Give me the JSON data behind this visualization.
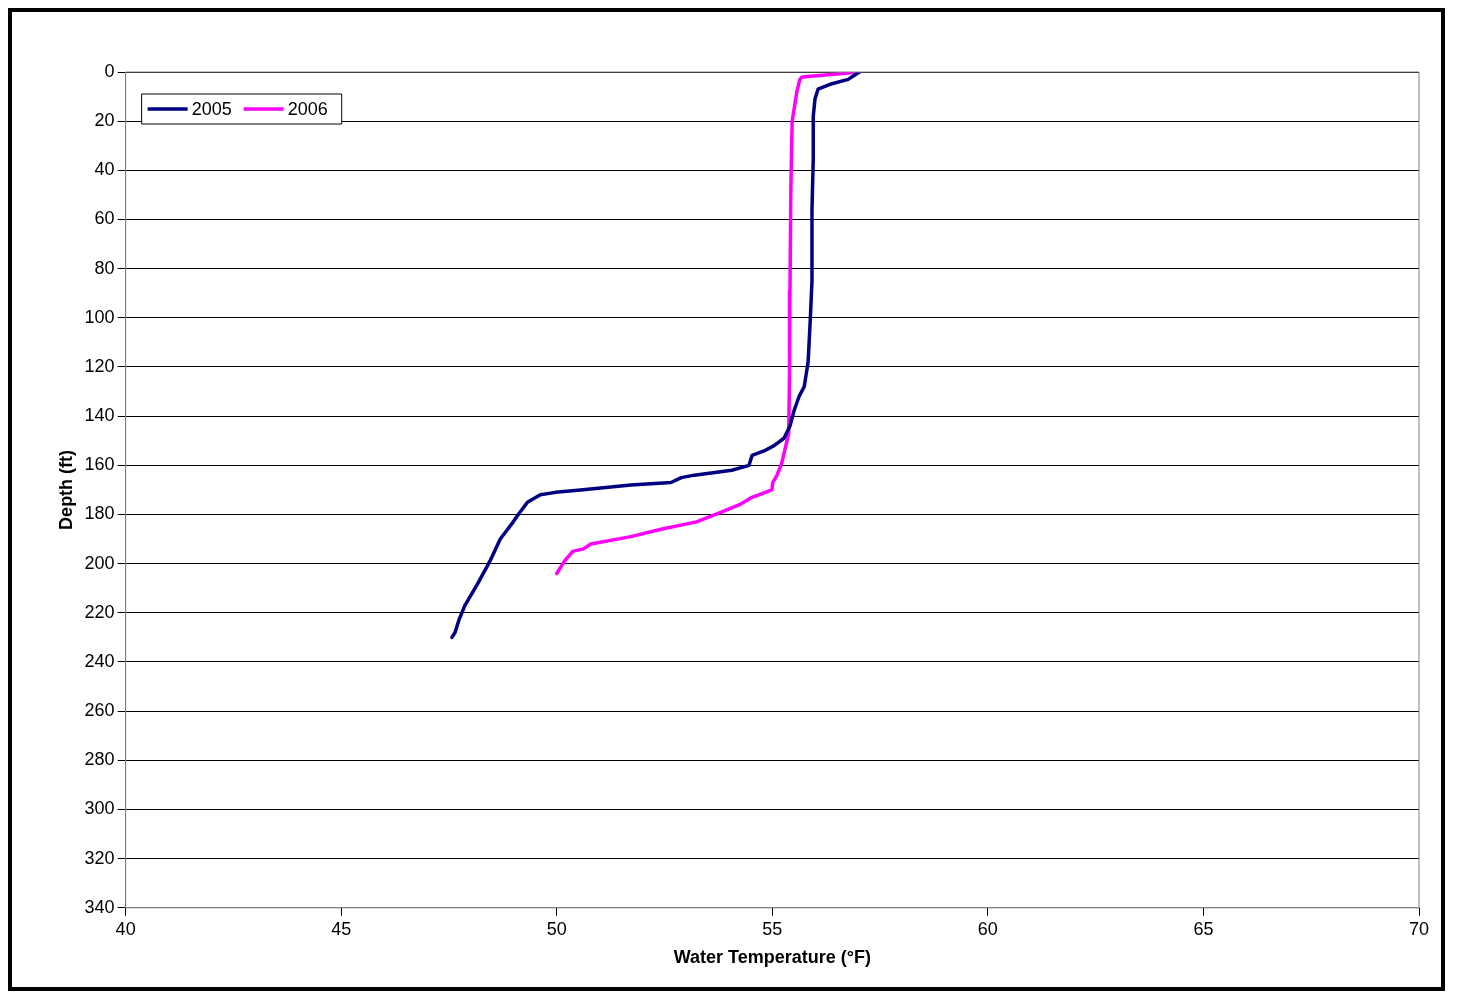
{
  "chart_data": {
    "type": "line",
    "xlabel": "Water Temperature (°F)",
    "ylabel": "Depth (ft)",
    "xlim": [
      40,
      70
    ],
    "xticks": [
      40,
      45,
      50,
      55,
      60,
      65,
      70
    ],
    "ylim": [
      340,
      0
    ],
    "yticks": [
      0,
      20,
      40,
      60,
      80,
      100,
      120,
      140,
      160,
      180,
      200,
      220,
      240,
      260,
      280,
      300,
      320,
      340
    ],
    "grid": "y",
    "legend": "top left",
    "marker": "none",
    "line_style": "solid",
    "series": [
      {
        "name": "2005",
        "color": "#000080",
        "x": [
          57.02,
          56.76,
          56.34,
          56.06,
          55.99,
          55.95,
          55.95,
          55.92,
          55.92,
          55.88,
          55.83,
          55.74,
          55.62,
          55.5,
          55.41,
          55.27,
          55.04,
          54.83,
          54.53,
          54.46,
          54.06,
          53.19,
          52.89,
          52.65,
          51.72,
          50.55,
          49.97,
          49.62,
          49.32,
          49.15,
          48.99,
          48.69,
          48.45,
          48.17,
          47.87,
          47.73,
          47.64,
          47.57
        ],
        "values": [
          0,
          3,
          5,
          7,
          11,
          18,
          35,
          56,
          85,
          101,
          118,
          128,
          132,
          138,
          144,
          149,
          152,
          154,
          156,
          160,
          162,
          164,
          165,
          167,
          168,
          170,
          171,
          172,
          175,
          179,
          183,
          190,
          199,
          208,
          217,
          223,
          228,
          230
        ]
      },
      {
        "name": "2006",
        "color": "#ff00ff",
        "x": [
          57.02,
          55.69,
          55.64,
          55.57,
          55.46,
          55.43,
          55.41,
          55.4,
          55.38,
          55.22,
          55.11,
          55.01,
          54.99,
          54.53,
          54.24,
          53.82,
          53.24,
          52.42,
          51.72,
          50.79,
          50.62,
          50.37,
          50.18,
          50.0
        ],
        "values": [
          0,
          2,
          3,
          8,
          20,
          47,
          89,
          122,
          147,
          159,
          164,
          167,
          170,
          173,
          176,
          179,
          183,
          186,
          189,
          192,
          194,
          195,
          199,
          204
        ]
      }
    ]
  }
}
